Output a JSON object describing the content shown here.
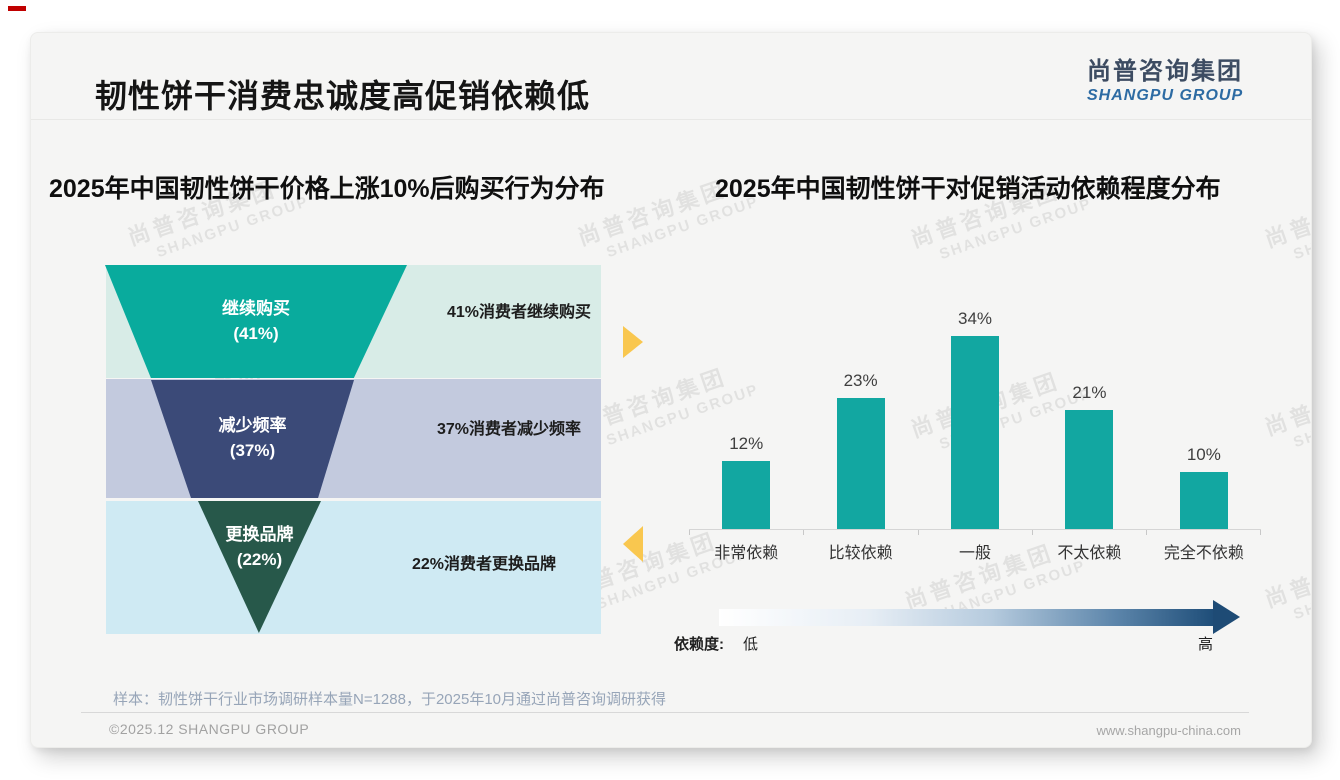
{
  "page_title": "韧性饼干消费忠诚度高促销依赖低",
  "logo": {
    "cn": "尚普咨询集团",
    "en": "SHANGPU GROUP"
  },
  "watermark": {
    "line1": "尚普咨询集团",
    "line2": "SHANGPU GROUP"
  },
  "chart_data": [
    {
      "type": "bar",
      "variant": "funnel",
      "title": "2025年中国韧性饼干价格上涨10%后购买行为分布",
      "categories": [
        "继续购买",
        "减少频率",
        "更换品牌"
      ],
      "values": [
        41,
        37,
        22
      ],
      "unit": "%",
      "value_labels": [
        "(41%)",
        "(37%)",
        "(22%)"
      ],
      "annotations": [
        "41%消费者继续购买",
        "37%消费者减少频率",
        "22%消费者更换品牌"
      ],
      "segment_colors": [
        "#09ab9d",
        "#3b4a78",
        "#27584a"
      ],
      "band_colors": [
        "#d8ece7",
        "#c3cade",
        "#cfeaf3"
      ]
    },
    {
      "type": "bar",
      "title": "2025年中国韧性饼干对促销活动依赖程度分布",
      "categories": [
        "非常依赖",
        "比较依赖",
        "一般",
        "不太依赖",
        "完全不依赖"
      ],
      "values": [
        12,
        23,
        34,
        21,
        10
      ],
      "unit": "%",
      "data_labels": [
        "12%",
        "23%",
        "34%",
        "21%",
        "10%"
      ],
      "bar_color": "#12a7a1",
      "ylim": [
        0,
        36
      ],
      "grid": false,
      "legend": "none"
    }
  ],
  "dependence_scale": {
    "label": "依赖度:",
    "low": "低",
    "high": "高",
    "gradient_end_color": "#1f4e79"
  },
  "footnote": "样本：韧性饼干行业市场调研样本量N=1288，于2025年10月通过尚普咨询调研获得",
  "footer": {
    "copyright": "©2025.12 SHANGPU GROUP",
    "website": "www.shangpu-china.com"
  },
  "accent_colors": {
    "arrow_yellow": "#f9c74f",
    "logo_blue": "#2d6ba3",
    "red_dash": "#c00000"
  }
}
